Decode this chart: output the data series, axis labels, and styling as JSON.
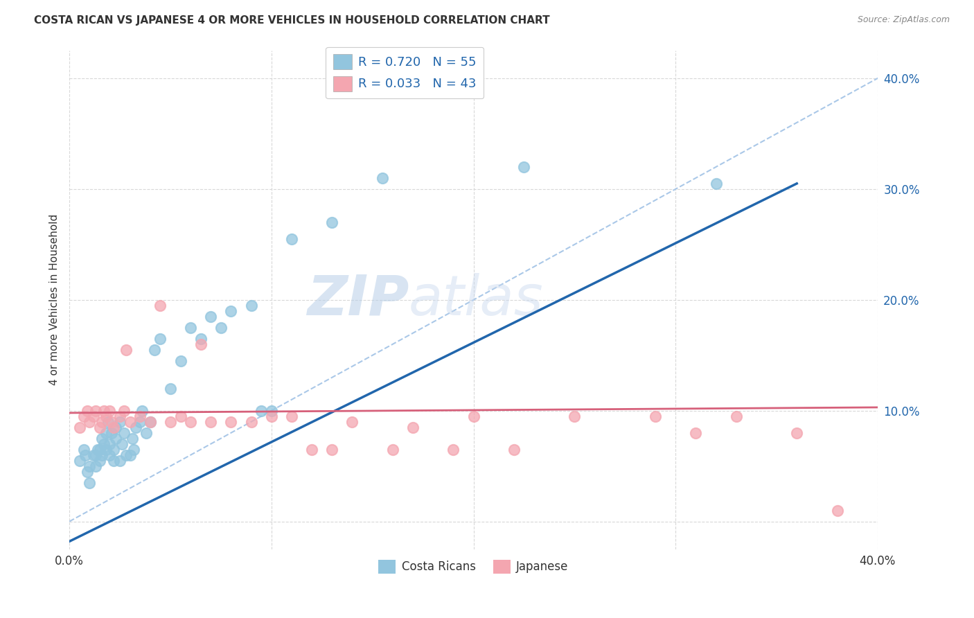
{
  "title": "COSTA RICAN VS JAPANESE 4 OR MORE VEHICLES IN HOUSEHOLD CORRELATION CHART",
  "source": "Source: ZipAtlas.com",
  "ylabel": "4 or more Vehicles in Household",
  "xlim": [
    0.0,
    0.4
  ],
  "ylim": [
    -0.025,
    0.425
  ],
  "blue_color": "#92c5de",
  "pink_color": "#f4a6b0",
  "blue_line_color": "#2166ac",
  "pink_line_color": "#d6607a",
  "diag_line_color": "#aac8e8",
  "legend_blue_label": "R = 0.720   N = 55",
  "legend_pink_label": "R = 0.033   N = 43",
  "watermark_zip": "ZIP",
  "watermark_atlas": "atlas",
  "blue_scatter_x": [
    0.005,
    0.007,
    0.008,
    0.009,
    0.01,
    0.01,
    0.012,
    0.013,
    0.013,
    0.014,
    0.015,
    0.015,
    0.016,
    0.016,
    0.017,
    0.018,
    0.018,
    0.019,
    0.02,
    0.02,
    0.021,
    0.022,
    0.022,
    0.023,
    0.023,
    0.025,
    0.025,
    0.026,
    0.027,
    0.028,
    0.03,
    0.031,
    0.032,
    0.033,
    0.035,
    0.036,
    0.038,
    0.04,
    0.042,
    0.045,
    0.05,
    0.055,
    0.06,
    0.065,
    0.07,
    0.075,
    0.08,
    0.09,
    0.095,
    0.1,
    0.11,
    0.13,
    0.155,
    0.225,
    0.32
  ],
  "blue_scatter_y": [
    0.055,
    0.065,
    0.06,
    0.045,
    0.035,
    0.05,
    0.06,
    0.05,
    0.06,
    0.065,
    0.055,
    0.065,
    0.06,
    0.075,
    0.07,
    0.065,
    0.08,
    0.09,
    0.06,
    0.07,
    0.08,
    0.055,
    0.065,
    0.075,
    0.085,
    0.055,
    0.09,
    0.07,
    0.08,
    0.06,
    0.06,
    0.075,
    0.065,
    0.085,
    0.09,
    0.1,
    0.08,
    0.09,
    0.155,
    0.165,
    0.12,
    0.145,
    0.175,
    0.165,
    0.185,
    0.175,
    0.19,
    0.195,
    0.1,
    0.1,
    0.255,
    0.27,
    0.31,
    0.32,
    0.305
  ],
  "pink_scatter_x": [
    0.005,
    0.007,
    0.009,
    0.01,
    0.012,
    0.013,
    0.015,
    0.016,
    0.017,
    0.018,
    0.02,
    0.021,
    0.022,
    0.025,
    0.027,
    0.028,
    0.03,
    0.035,
    0.04,
    0.045,
    0.05,
    0.055,
    0.06,
    0.065,
    0.07,
    0.08,
    0.09,
    0.1,
    0.11,
    0.12,
    0.13,
    0.14,
    0.16,
    0.17,
    0.19,
    0.2,
    0.22,
    0.25,
    0.29,
    0.31,
    0.33,
    0.36,
    0.38
  ],
  "pink_scatter_y": [
    0.085,
    0.095,
    0.1,
    0.09,
    0.095,
    0.1,
    0.085,
    0.09,
    0.1,
    0.095,
    0.1,
    0.09,
    0.085,
    0.095,
    0.1,
    0.155,
    0.09,
    0.095,
    0.09,
    0.195,
    0.09,
    0.095,
    0.09,
    0.16,
    0.09,
    0.09,
    0.09,
    0.095,
    0.095,
    0.065,
    0.065,
    0.09,
    0.065,
    0.085,
    0.065,
    0.095,
    0.065,
    0.095,
    0.095,
    0.08,
    0.095,
    0.08,
    0.01
  ],
  "blue_line_x0": 0.0,
  "blue_line_y0": -0.018,
  "blue_line_x1": 0.36,
  "blue_line_y1": 0.305,
  "pink_line_x0": 0.0,
  "pink_line_y0": 0.098,
  "pink_line_x1": 0.4,
  "pink_line_y1": 0.103
}
